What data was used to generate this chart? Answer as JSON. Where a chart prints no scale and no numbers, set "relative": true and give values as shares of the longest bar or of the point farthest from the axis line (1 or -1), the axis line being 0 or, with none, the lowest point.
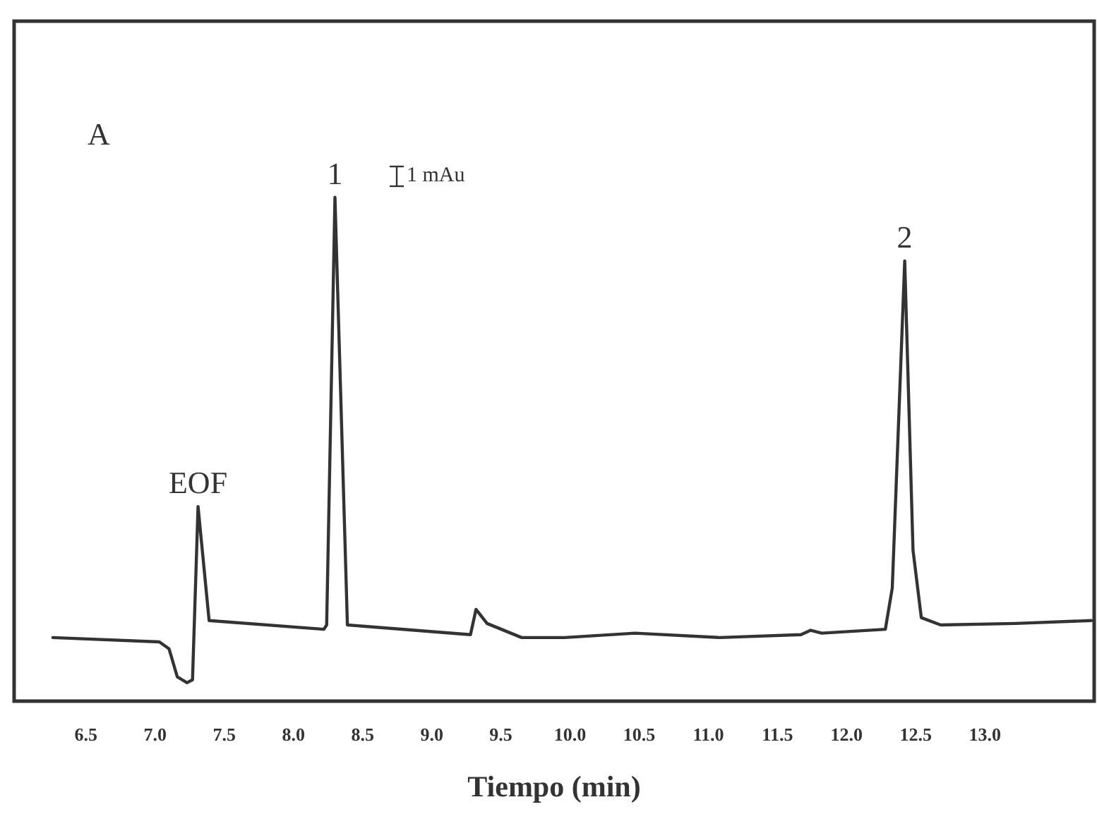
{
  "chart_data": {
    "type": "line",
    "relative": true,
    "xlabel": "Tiempo (min)",
    "xlim": [
      5.98,
      13.79
    ],
    "xticks": [
      {
        "value": 6.5,
        "label": "6.5"
      },
      {
        "value": 7.0,
        "label": "7.0"
      },
      {
        "value": 7.5,
        "label": "7.5"
      },
      {
        "value": 8.0,
        "label": "8.0"
      },
      {
        "value": 8.5,
        "label": "8.5"
      },
      {
        "value": 9.0,
        "label": "9.0"
      },
      {
        "value": 9.5,
        "label": "9.5"
      },
      {
        "value": 10.0,
        "label": "10.0"
      },
      {
        "value": 10.5,
        "label": "10.5"
      },
      {
        "value": 11.0,
        "label": "11.0"
      },
      {
        "value": 11.5,
        "label": "11.5"
      },
      {
        "value": 12.0,
        "label": "12.0"
      },
      {
        "value": 12.5,
        "label": "12.5"
      },
      {
        "value": 13.0,
        "label": "13.0"
      }
    ],
    "tick_labels": "x",
    "grid": false,
    "marker": "none",
    "line_style": "solid",
    "series": [
      {
        "color": "#333333",
        "x": [
          6.26,
          7.03,
          7.1,
          7.16,
          7.23,
          7.27,
          7.31,
          7.39,
          8.22,
          8.24,
          8.3,
          8.39,
          9.28,
          9.32,
          9.4,
          9.65,
          9.96,
          10.47,
          11.08,
          11.67,
          11.74,
          11.82,
          12.28,
          12.33,
          12.42,
          12.48,
          12.54,
          12.68,
          13.22,
          13.77
        ],
        "values": [
          0.093,
          0.084,
          0.07,
          0.012,
          0,
          0.006,
          0.363,
          0.128,
          0.11,
          0.119,
          1,
          0.119,
          0.099,
          0.151,
          0.122,
          0.093,
          0.093,
          0.102,
          0.093,
          0.099,
          0.108,
          0.102,
          0.11,
          0.195,
          0.869,
          0.273,
          0.134,
          0.119,
          0.122,
          0.128
        ]
      }
    ],
    "annotations": [
      "A",
      "1 mAu",
      {
        "text": "EOF",
        "x": 7.31,
        "y": 0.363
      },
      {
        "text": "1",
        "x": 8.3,
        "y": 1
      },
      {
        "text": "2",
        "x": 12.42,
        "y": 0.869
      }
    ]
  }
}
